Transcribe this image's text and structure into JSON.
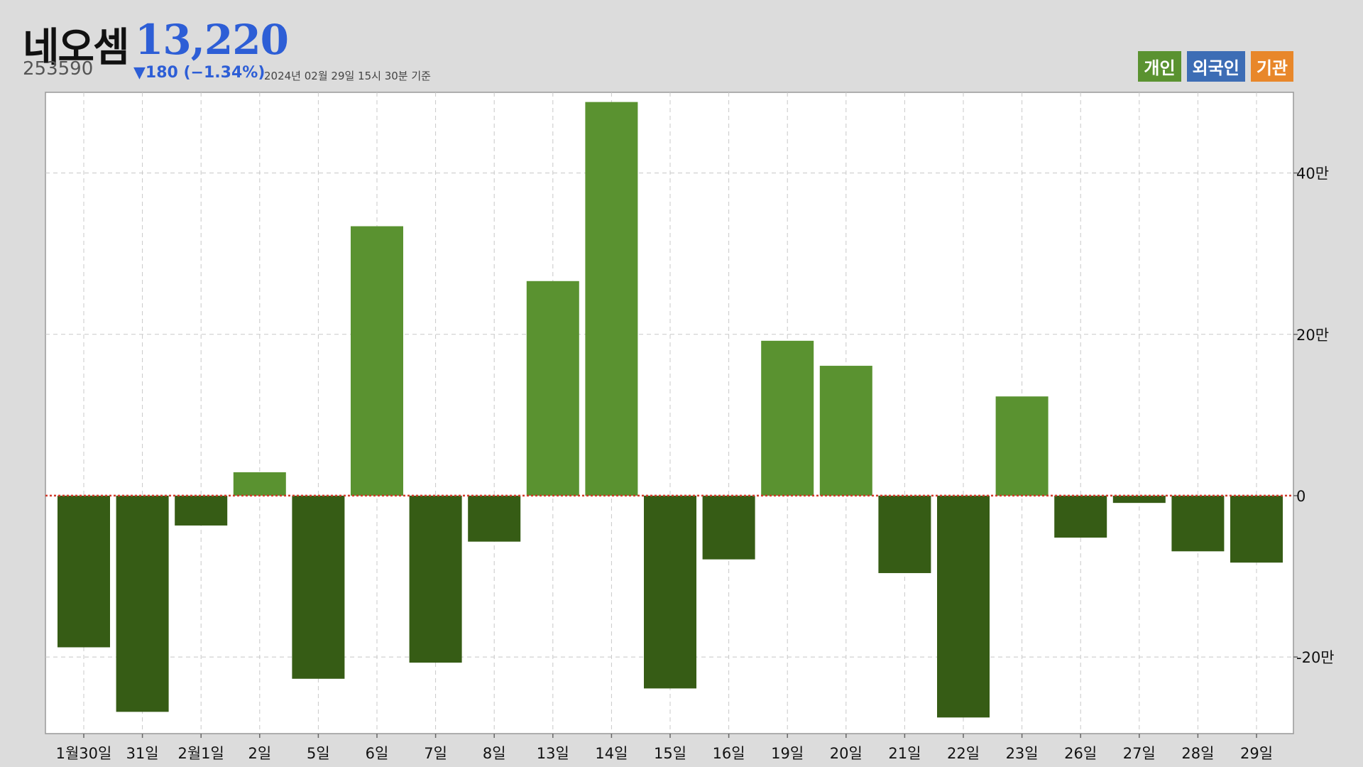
{
  "header": {
    "name": "네오셈",
    "price": "13,220",
    "code": "253590",
    "change": "▼180 (−1.34%)",
    "datetime": "2024년 02월 29일 15시 30분 기준"
  },
  "legend": [
    {
      "label": "개인",
      "color": "#5a9230"
    },
    {
      "label": "외국인",
      "color": "#3d6db5"
    },
    {
      "label": "기관",
      "color": "#e8872a"
    }
  ],
  "colors": {
    "positive": "#5a9230",
    "negative": "#365c15",
    "zero_line": "#d23a2a",
    "grid": "#c8c8c8",
    "plot_bg": "#ffffff"
  },
  "chart_data": {
    "type": "bar",
    "series": [
      {
        "name": "개인",
        "values": [
          -18.8,
          -26.8,
          -3.7,
          2.9,
          -22.7,
          33.4,
          -20.7,
          -5.7,
          26.6,
          48.8,
          -23.9,
          -7.9,
          19.2,
          16.1,
          -9.6,
          -27.5,
          12.3,
          -5.2,
          -0.9,
          -6.9,
          -8.3
        ]
      }
    ],
    "categories": [
      "1월30일",
      "31일",
      "2월1일",
      "2일",
      "5일",
      "6일",
      "7일",
      "8일",
      "13일",
      "14일",
      "15일",
      "16일",
      "19일",
      "20일",
      "21일",
      "22일",
      "23일",
      "26일",
      "27일",
      "28일",
      "29일"
    ],
    "ylim": [
      -29.5,
      50
    ],
    "yticks": [
      -20,
      0,
      20,
      40
    ],
    "ytick_labels": [
      "-20만",
      "0",
      "20만",
      "40만"
    ],
    "grid": true,
    "legend_position": "top-right"
  }
}
